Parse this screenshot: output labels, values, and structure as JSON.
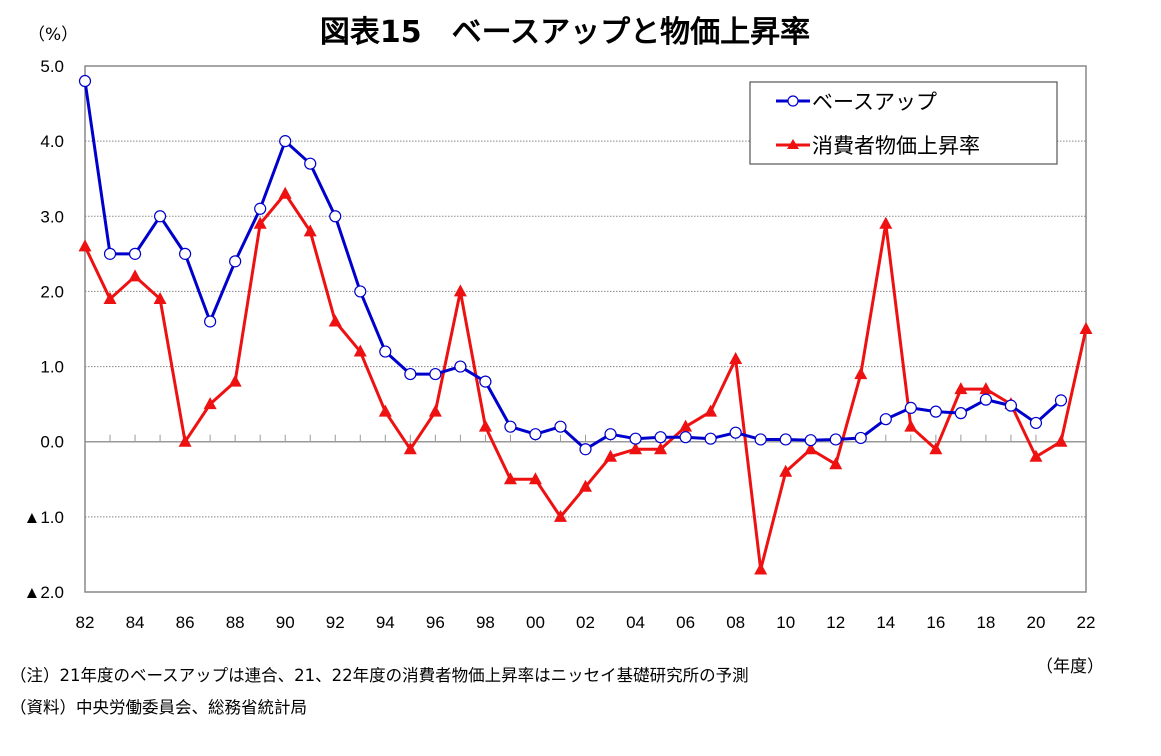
{
  "chart_data": {
    "type": "line",
    "title": "図表15　ベースアップと物価上昇率",
    "ylabel": "（%）",
    "xlabel": "（年度）",
    "ylim": [
      -2.0,
      5.0
    ],
    "yticks": [
      5.0,
      4.0,
      3.0,
      2.0,
      1.0,
      0.0,
      -1.0,
      -2.0
    ],
    "ytick_labels": [
      "5.0",
      "4.0",
      "3.0",
      "2.0",
      "1.0",
      "0.0",
      "▲1.0",
      "▲2.0"
    ],
    "grid": true,
    "x": [
      1982,
      1983,
      1984,
      1985,
      1986,
      1987,
      1988,
      1989,
      1990,
      1991,
      1992,
      1993,
      1994,
      1995,
      1996,
      1997,
      1998,
      1999,
      2000,
      2001,
      2002,
      2003,
      2004,
      2005,
      2006,
      2007,
      2008,
      2009,
      2010,
      2011,
      2012,
      2013,
      2014,
      2015,
      2016,
      2017,
      2018,
      2019,
      2020,
      2021,
      2022
    ],
    "xlim": [
      1982,
      2022
    ],
    "xtick_labels": [
      "82",
      "84",
      "86",
      "88",
      "90",
      "92",
      "94",
      "96",
      "98",
      "00",
      "02",
      "04",
      "06",
      "08",
      "10",
      "12",
      "14",
      "16",
      "18",
      "20",
      "22"
    ],
    "legend_position": "top-right",
    "series": [
      {
        "name": "ベースアップ",
        "color": "#0000CC",
        "marker": "open-circle",
        "values": [
          4.8,
          2.5,
          2.5,
          3.0,
          2.5,
          1.6,
          2.4,
          3.1,
          4.0,
          3.7,
          3.0,
          2.0,
          1.2,
          0.9,
          0.9,
          1.0,
          0.8,
          0.2,
          0.1,
          0.2,
          -0.1,
          0.1,
          0.04,
          0.06,
          0.06,
          0.04,
          0.12,
          0.03,
          0.03,
          0.02,
          0.03,
          0.05,
          0.3,
          0.45,
          0.4,
          0.38,
          0.56,
          0.48,
          0.25,
          0.55,
          null
        ]
      },
      {
        "name": "消費者物価上昇率",
        "color": "#EE1111",
        "marker": "filled-triangle",
        "values": [
          2.6,
          1.9,
          2.2,
          1.9,
          0.0,
          0.5,
          0.8,
          2.9,
          3.3,
          2.8,
          1.6,
          1.2,
          0.4,
          -0.1,
          0.4,
          2.0,
          0.2,
          -0.5,
          -0.5,
          -1.0,
          -0.6,
          -0.2,
          -0.1,
          -0.1,
          0.2,
          0.4,
          1.1,
          -1.7,
          -0.4,
          -0.1,
          -0.3,
          0.9,
          2.9,
          0.2,
          -0.1,
          0.7,
          0.7,
          0.5,
          -0.2,
          0.0,
          1.5
        ]
      }
    ]
  },
  "notes": {
    "note1": "（注）21年度のベースアップは連合、21、22年度の消費者物価上昇率はニッセイ基礎研究所の予測",
    "note2": "（資料）中央労働委員会、総務省統計局"
  }
}
